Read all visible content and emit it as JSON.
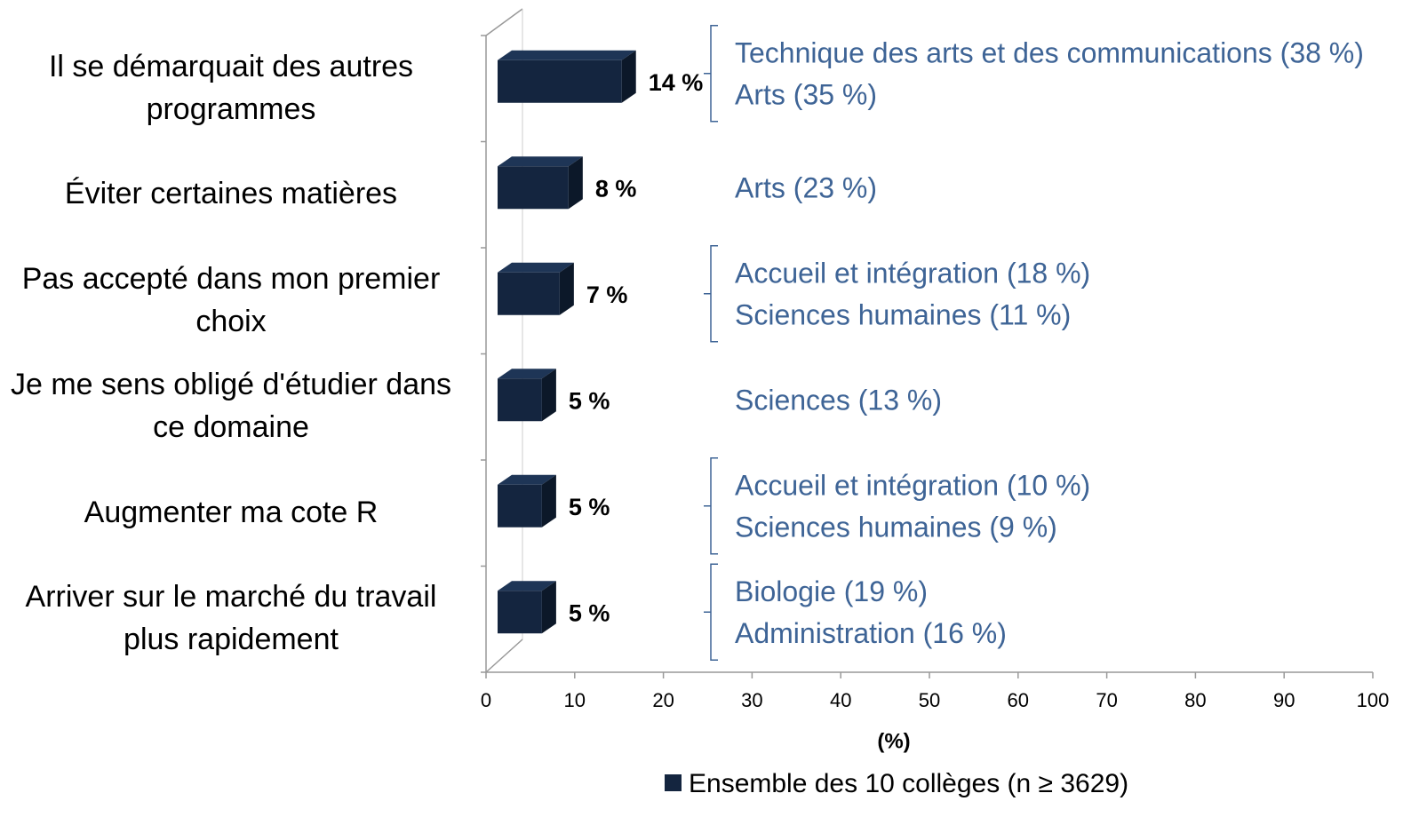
{
  "chart_data": {
    "type": "bar3d_horizontal",
    "categories": [
      "Il se démarquait des autres programmes",
      "Éviter certaines matières",
      "Pas accepté dans mon premier choix",
      "Je me sens obligé d'étudier dans ce domaine",
      "Augmenter ma cote R",
      "Arriver sur le marché du travail plus rapidement"
    ],
    "series": [
      {
        "name": "Ensemble des 10 collèges (n ≥ 3629)",
        "color": "#14253f",
        "values": [
          14,
          8,
          7,
          5,
          5,
          5
        ],
        "value_labels": [
          "14 %",
          "8 %",
          "7 %",
          "5 %",
          "5 %",
          "5 %"
        ]
      }
    ],
    "annotations": [
      [
        "Technique des arts et des communications (38 %)",
        "Arts (35 %)"
      ],
      [
        "Arts (23 %)"
      ],
      [
        "Accueil et intégration  (18 %)",
        "Sciences humaines (11 %)"
      ],
      [
        "Sciences (13 %)"
      ],
      [
        "Accueil et intégration  (10 %)",
        "Sciences humaines (9 %)"
      ],
      [
        "Biologie (19 %)",
        "Administration (16 %)"
      ]
    ],
    "annotation_color": "#3e6496",
    "xlabel": "(%)",
    "xlim": [
      0,
      100
    ],
    "xticks": [
      0,
      10,
      20,
      30,
      40,
      50,
      60,
      70,
      80,
      90,
      100
    ],
    "legend": "bottom"
  }
}
